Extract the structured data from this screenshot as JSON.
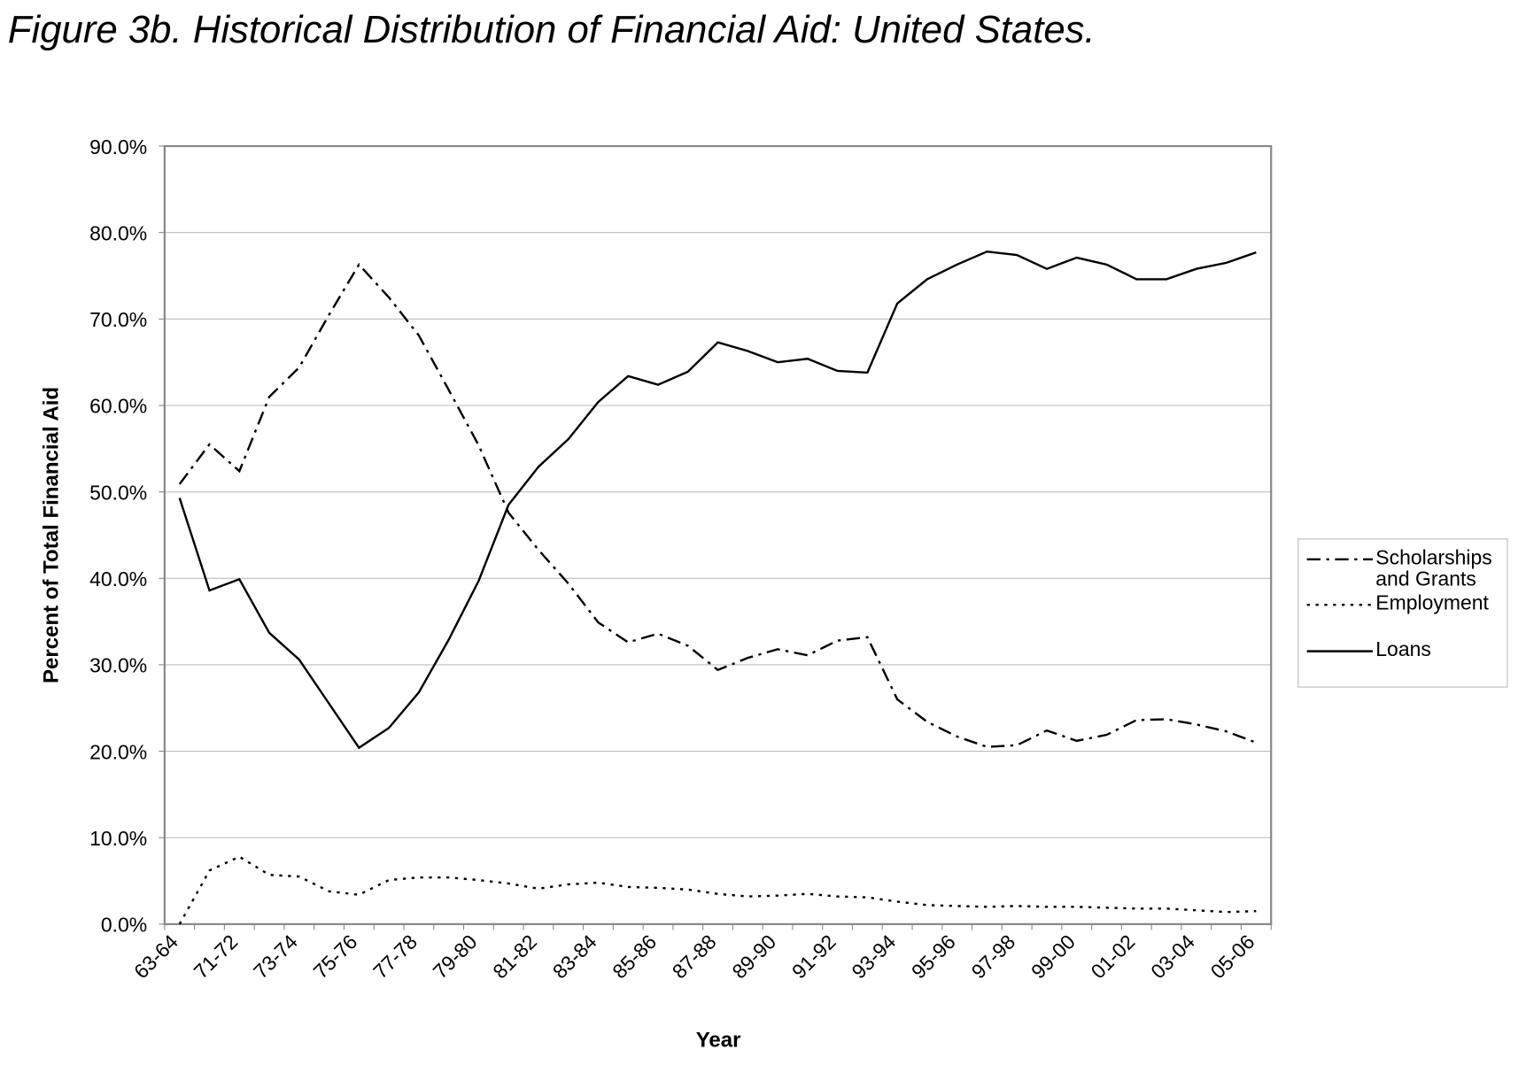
{
  "chart_data": {
    "type": "line",
    "title": "Figure 3b. Historical Distribution of Financial Aid: United States.",
    "x_label": "Year",
    "y_label": "Percent of Total Financial Aid",
    "categories": [
      "63-64",
      null,
      "71-72",
      null,
      "73-74",
      null,
      "75-76",
      null,
      "77-78",
      null,
      "79-80",
      null,
      "81-82",
      null,
      "83-84",
      null,
      "85-86",
      null,
      "87-88",
      null,
      "89-90",
      null,
      "91-92",
      null,
      "93-94",
      null,
      "95-96",
      null,
      "97-98",
      null,
      "99-00",
      null,
      "01-02",
      null,
      "03-04",
      null,
      "05-06"
    ],
    "series": [
      {
        "name": "Scholarships and Grants",
        "color": "#000000",
        "style": "dashdot",
        "values": [
          50.9,
          55.5,
          52.4,
          61.0,
          64.4,
          70.5,
          76.3,
          72.5,
          68.1,
          61.8,
          55.4,
          47.6,
          43.3,
          39.4,
          34.9,
          32.6,
          33.6,
          32.2,
          29.4,
          30.8,
          31.8,
          31.1,
          32.8,
          33.2,
          26.0,
          23.4,
          21.7,
          20.5,
          20.7,
          22.4,
          21.2,
          21.9,
          23.6,
          23.7,
          23.1,
          22.3,
          21.0
        ]
      },
      {
        "name": "Employment",
        "color": "#000000",
        "style": "dotted",
        "values": [
          0.0,
          6.2,
          7.8,
          5.7,
          5.5,
          3.8,
          3.4,
          5.1,
          5.4,
          5.4,
          5.1,
          4.7,
          4.1,
          4.6,
          4.8,
          4.3,
          4.2,
          4.0,
          3.5,
          3.2,
          3.3,
          3.5,
          3.2,
          3.1,
          2.6,
          2.2,
          2.1,
          2.0,
          2.1,
          2.0,
          2.0,
          1.9,
          1.8,
          1.8,
          1.6,
          1.4,
          1.5
        ]
      },
      {
        "name": "Loans",
        "color": "#000000",
        "style": "solid",
        "values": [
          49.3,
          38.6,
          39.9,
          33.7,
          30.6,
          25.5,
          20.4,
          22.7,
          26.8,
          32.9,
          39.7,
          48.5,
          52.9,
          56.1,
          60.4,
          63.4,
          62.4,
          63.9,
          67.3,
          66.3,
          65.0,
          65.4,
          64.0,
          63.8,
          71.8,
          74.6,
          76.3,
          77.8,
          77.4,
          75.8,
          77.1,
          76.3,
          74.6,
          74.6,
          75.8,
          76.5,
          77.7
        ]
      }
    ],
    "ylim": [
      0,
      90
    ],
    "yticks": [
      {
        "value": 0,
        "label": "0.0%"
      },
      {
        "value": 10,
        "label": "10.0%"
      },
      {
        "value": 20,
        "label": "20.0%"
      },
      {
        "value": 30,
        "label": "30.0%"
      },
      {
        "value": 40,
        "label": "40.0%"
      },
      {
        "value": 50,
        "label": "50.0%"
      },
      {
        "value": 60,
        "label": "60.0%"
      },
      {
        "value": 70,
        "label": "70.0%"
      },
      {
        "value": 80,
        "label": "80.0%"
      },
      {
        "value": 90,
        "label": "90.0%"
      }
    ],
    "grid": true,
    "legend": "right"
  }
}
